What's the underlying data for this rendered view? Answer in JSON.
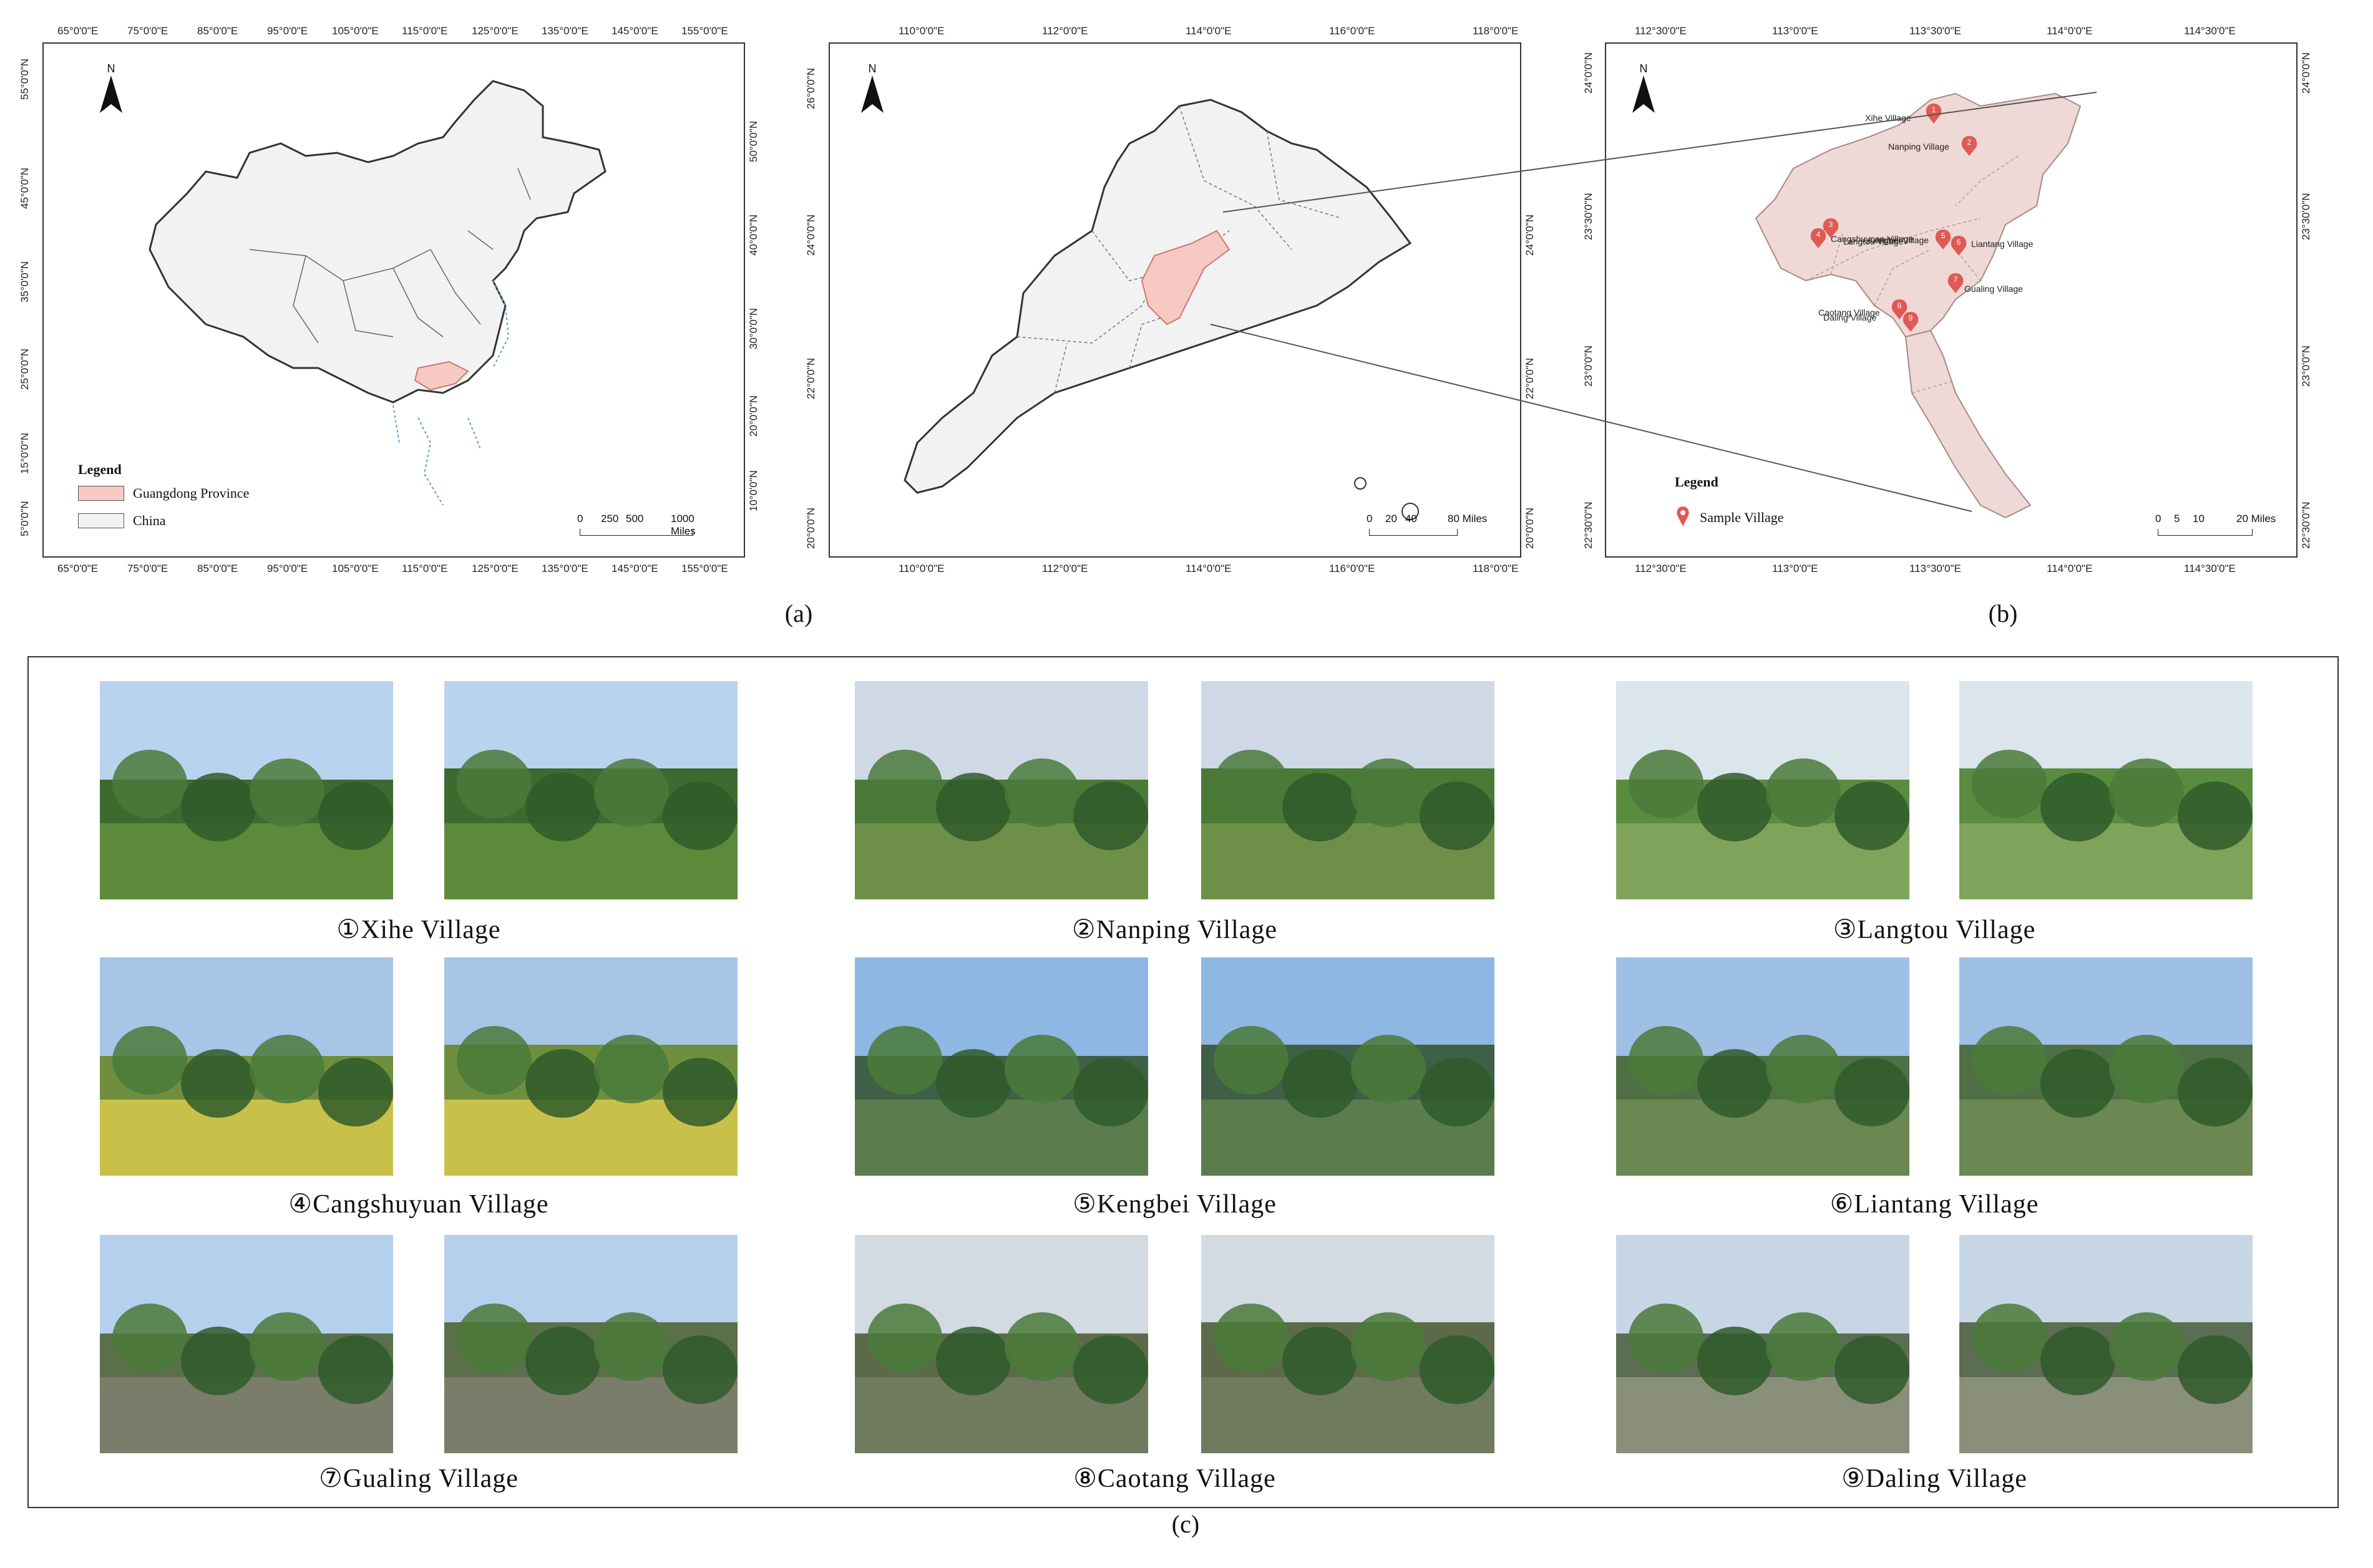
{
  "map_a": {
    "top_ticks": [
      "65°0'0\"E",
      "75°0'0\"E",
      "85°0'0\"E",
      "95°0'0\"E",
      "105°0'0\"E",
      "115°0'0\"E",
      "125°0'0\"E",
      "135°0'0\"E",
      "145°0'0\"E",
      "155°0'0\"E"
    ],
    "left_ticks": [
      "55°0'0\"N",
      "50°0'0\"N",
      "45°0'0\"N",
      "40°0'0\"N",
      "35°0'0\"N",
      "30°0'0\"N",
      "25°0'0\"N",
      "20°0'0\"N",
      "15°0'0\"N",
      "10°0'0\"N",
      "5°0'0\"N"
    ],
    "right_ticks": [
      "50°0'0\"N",
      "45°0'0\"N",
      "40°0'0\"N",
      "35°0'0\"N",
      "30°0'0\"N",
      "25°0'0\"N",
      "20°0'0\"N",
      "15°0'0\"N",
      "10°0'0\"N",
      "5°0'0\"N"
    ],
    "north": "N",
    "legend_title": "Legend",
    "legend_items": [
      {
        "label": "Guangdong Province",
        "color": "#f6c9c2"
      },
      {
        "label": "China",
        "color": "#f2f2f2"
      }
    ],
    "scale_labels": [
      "0",
      "250",
      "500",
      "1000 Miles"
    ],
    "caption": "(a)"
  },
  "map_mid": {
    "top_ticks": [
      "110°0'0\"E",
      "112°0'0\"E",
      "114°0'0\"E",
      "116°0'0\"E",
      "118°0'0\"E"
    ],
    "left_ticks": [
      "26°0'0\"N",
      "24°0'0\"N",
      "22°0'0\"N",
      "20°0'0\"N"
    ],
    "right_ticks": [
      "24°0'0\"N",
      "22°0'0\"N",
      "20°0'0\"N"
    ],
    "north": "N",
    "scale_labels": [
      "0",
      "20",
      "40",
      "80 Miles"
    ]
  },
  "map_b": {
    "top_ticks": [
      "112°30'0\"E",
      "113°0'0\"E",
      "113°30'0\"E",
      "114°0'0\"E",
      "114°30'0\"E"
    ],
    "left_ticks": [
      "24°0'0\"N",
      "23°30'0\"N",
      "23°0'0\"N",
      "22°30'0\"N"
    ],
    "right_ticks": [
      "24°0'0\"N",
      "23°30'0\"N",
      "23°0'0\"N",
      "22°30'0\"N"
    ],
    "north": "N",
    "legend_title": "Legend",
    "legend_item": "Sample Village",
    "pin_color": "#e05a55",
    "villages": [
      {
        "num": "1",
        "label": "Xihe Village"
      },
      {
        "num": "2",
        "label": "Nanping Village"
      },
      {
        "num": "3",
        "label": "Langtou Village"
      },
      {
        "num": "4",
        "label": "Cangshuyuan Village"
      },
      {
        "num": "5",
        "label": "Kengbei Village"
      },
      {
        "num": "6",
        "label": "Liantang Village"
      },
      {
        "num": "7",
        "label": "Gualing Village"
      },
      {
        "num": "8",
        "label": "Caotang Village"
      },
      {
        "num": "9",
        "label": "Daling Village"
      }
    ],
    "scale_labels": [
      "0",
      "5",
      "10",
      "20 Miles"
    ],
    "caption": "(b)"
  },
  "photos_panel": {
    "captions": [
      "①Xihe Village",
      "②Nanping Village",
      "③Langtou Village",
      "④Cangshuyuan Village",
      "⑤Kengbei Village",
      "⑥Liantang Village",
      "⑦Gualing Village",
      "⑧Caotang Village",
      "⑨Daling Village"
    ],
    "caption": "(c)"
  }
}
